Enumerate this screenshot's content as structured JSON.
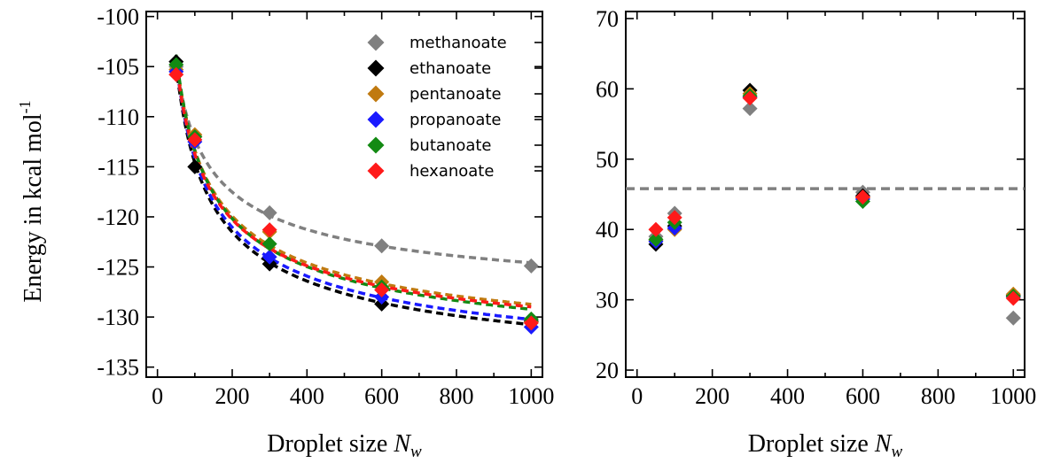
{
  "chart_data": [
    {
      "type": "scatter",
      "xlabel": "Droplet size",
      "xlabel_var": "N",
      "xlabel_sub": "w",
      "ylabel": "Energy in kcal mol",
      "ylabel_sup": "-1",
      "xlim": [
        -30,
        1030
      ],
      "ylim": [
        -136,
        -99.5
      ],
      "xticks": [
        0,
        200,
        400,
        600,
        800,
        1000
      ],
      "yticks": [
        -100,
        -105,
        -110,
        -115,
        -120,
        -125,
        -130,
        -135
      ],
      "legend_position": "top-right",
      "fit_curves": "dashed",
      "series": [
        {
          "name": "methanoate",
          "color": "#808080",
          "x": [
            50,
            100,
            300,
            600,
            1000
          ],
          "y": [
            -105.0,
            -112.0,
            -119.6,
            -122.9,
            -124.9
          ]
        },
        {
          "name": "ethanoate",
          "color": "#000000",
          "x": [
            50,
            100,
            300,
            600,
            1000
          ],
          "y": [
            -104.5,
            -115.0,
            -124.7,
            -128.7,
            -130.4
          ]
        },
        {
          "name": "pentanoate",
          "color": "#c07a10",
          "x": [
            50,
            100,
            300,
            600,
            1000
          ],
          "y": [
            -105.3,
            -111.8,
            -121.5,
            -126.5,
            -130.5
          ]
        },
        {
          "name": "propanoate",
          "color": "#1a1aff",
          "x": [
            50,
            100,
            300,
            600,
            1000
          ],
          "y": [
            -105.5,
            -112.5,
            -124.0,
            -128.0,
            -131.0
          ]
        },
        {
          "name": "butanoate",
          "color": "#138a13",
          "x": [
            50,
            100,
            300,
            600,
            1000
          ],
          "y": [
            -104.8,
            -112.0,
            -122.7,
            -127.0,
            -130.2
          ]
        },
        {
          "name": "hexanoate",
          "color": "#ff1a1a",
          "x": [
            50,
            100,
            300,
            600,
            1000
          ],
          "y": [
            -105.8,
            -112.3,
            -121.3,
            -127.3,
            -130.6
          ]
        }
      ]
    },
    {
      "type": "scatter",
      "xlabel": "Droplet size",
      "xlabel_var": "N",
      "xlabel_sub": "w",
      "xlim": [
        -30,
        1030
      ],
      "ylim": [
        19,
        71
      ],
      "xticks": [
        0,
        200,
        400,
        600,
        800,
        1000
      ],
      "yticks": [
        20,
        30,
        40,
        50,
        60,
        70
      ],
      "reference_line": 45.8,
      "series": [
        {
          "name": "methanoate",
          "color": "#808080",
          "x": [
            50,
            100,
            300,
            600,
            1000
          ],
          "y": [
            39.0,
            42.3,
            57.2,
            45.3,
            27.4
          ]
        },
        {
          "name": "ethanoate",
          "color": "#000000",
          "x": [
            50,
            100,
            300,
            600,
            1000
          ],
          "y": [
            37.9,
            40.5,
            59.8,
            44.8,
            30.6
          ]
        },
        {
          "name": "pentanoate",
          "color": "#c07a10",
          "x": [
            50,
            100,
            300,
            600,
            1000
          ],
          "y": [
            38.5,
            40.0,
            59.3,
            44.5,
            30.8
          ]
        },
        {
          "name": "propanoate",
          "color": "#1a1aff",
          "x": [
            50,
            100,
            300,
            600,
            1000
          ],
          "y": [
            38.3,
            40.2,
            58.8,
            44.3,
            30.4
          ]
        },
        {
          "name": "butanoate",
          "color": "#138a13",
          "x": [
            50,
            100,
            300,
            600,
            1000
          ],
          "y": [
            38.6,
            41.0,
            59.0,
            44.0,
            30.5
          ]
        },
        {
          "name": "hexanoate",
          "color": "#ff1a1a",
          "x": [
            50,
            100,
            300,
            600,
            1000
          ],
          "y": [
            40.0,
            41.7,
            58.7,
            44.6,
            30.2
          ]
        }
      ]
    }
  ]
}
